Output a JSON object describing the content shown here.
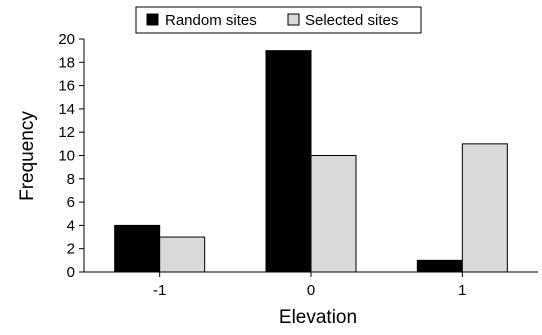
{
  "chart_data": {
    "type": "bar",
    "title": "",
    "xlabel": "Elevation",
    "ylabel": "Frequency",
    "categories": [
      "-1",
      "0",
      "1"
    ],
    "series": [
      {
        "name": "Random sites",
        "color": "#000000",
        "values": [
          4,
          19,
          1
        ]
      },
      {
        "name": "Selected sites",
        "color": "#d9d9d9",
        "values": [
          3,
          10,
          11
        ]
      }
    ],
    "ylim": [
      0,
      20
    ],
    "yticks": [
      "0",
      "2",
      "4",
      "6",
      "8",
      "10",
      "12",
      "14",
      "16",
      "18",
      "20"
    ],
    "grid": false,
    "legend_position": "top-center"
  }
}
